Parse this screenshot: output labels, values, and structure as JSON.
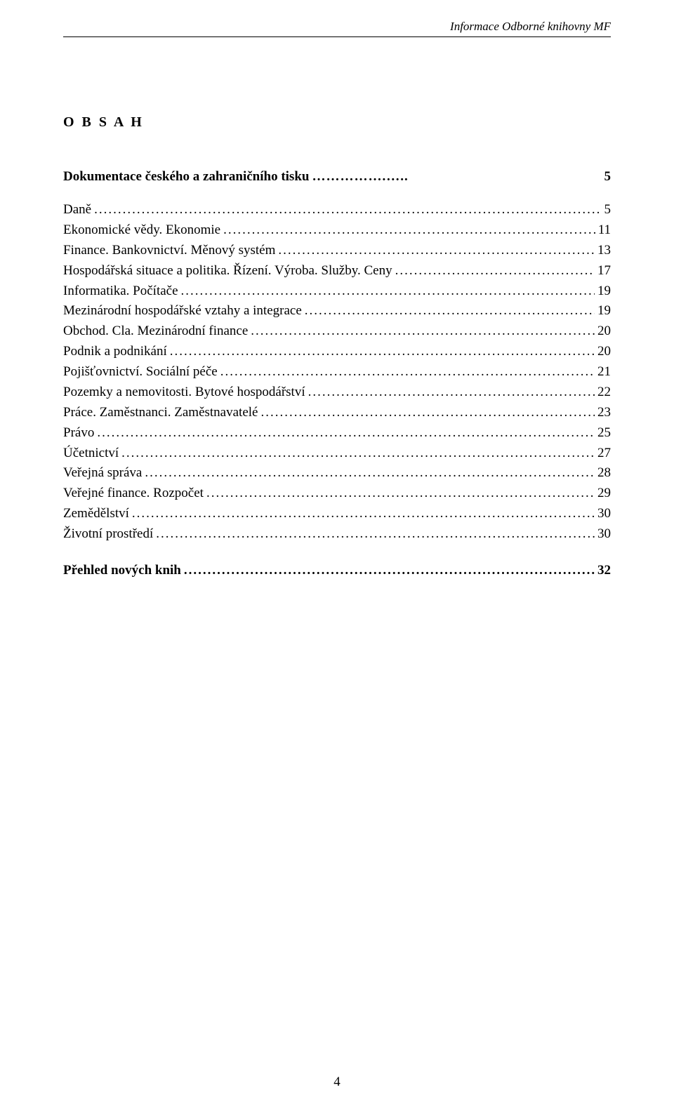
{
  "header": {
    "running_title": "Informace Odborné knihovny MF"
  },
  "title": "O B S A H",
  "doc_heading": {
    "text": "Dokumentace českého a zahraničního tisku",
    "page": "5"
  },
  "toc": [
    {
      "text": "Daně",
      "page": "5"
    },
    {
      "text": "Ekonomické vědy. Ekonomie",
      "page": "11"
    },
    {
      "text": "Finance. Bankovnictví. Měnový systém",
      "page": "13"
    },
    {
      "text": "Hospodářská situace a politika. Řízení. Výroba. Služby. Ceny",
      "page": "17"
    },
    {
      "text": "Informatika. Počítače",
      "page": "19"
    },
    {
      "text": "Mezinárodní hospodářské vztahy a integrace",
      "page": "19"
    },
    {
      "text": "Obchod. Cla. Mezinárodní finance",
      "page": "20"
    },
    {
      "text": "Podnik a podnikání",
      "page": "20"
    },
    {
      "text": "Pojišťovnictví. Sociální péče",
      "page": "21"
    },
    {
      "text": "Pozemky a nemovitosti. Bytové hospodářství",
      "page": "22"
    },
    {
      "text": "Práce. Zaměstnanci. Zaměstnavatelé",
      "page": "23"
    },
    {
      "text": "Právo",
      "page": "25"
    },
    {
      "text": "Účetnictví",
      "page": "27"
    },
    {
      "text": "Veřejná správa",
      "page": "28"
    },
    {
      "text": "Veřejné finance. Rozpočet",
      "page": "29"
    },
    {
      "text": "Zemědělství",
      "page": "30"
    },
    {
      "text": "Životní prostředí",
      "page": "30"
    }
  ],
  "closing_heading": {
    "text": "Přehled nových knih",
    "page": "32"
  },
  "footer": {
    "page_number": "4"
  }
}
